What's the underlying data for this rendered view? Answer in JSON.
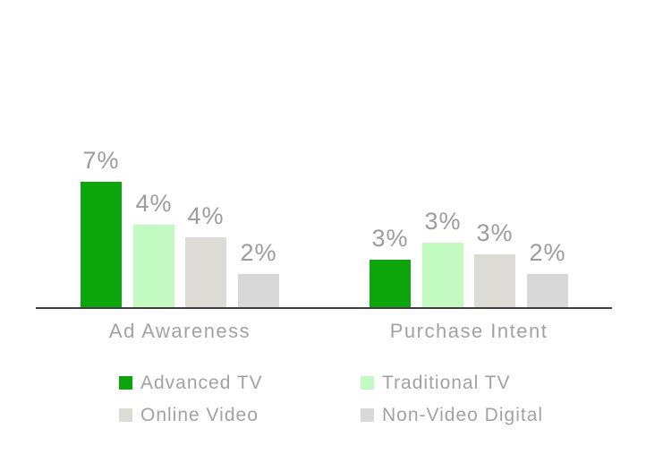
{
  "page": {
    "background_color": "#ffffff",
    "text_gray": "#a2a2a2",
    "value_label_gray": "#9c9c9c",
    "axis_color": "#3e3e3e"
  },
  "chart_data": {
    "type": "bar",
    "title": "",
    "categories": [
      "Ad Awareness",
      "Purchase Intent"
    ],
    "series": [
      {
        "name": "Advanced TV",
        "color": "#0ca60c",
        "values": [
          7,
          3
        ],
        "data_labels": [
          "7%",
          "3%"
        ],
        "bar_heights_pct_estimated": [
          7.0,
          2.7
        ]
      },
      {
        "name": "Traditional TV",
        "color": "#c2fac2",
        "values": [
          4,
          3
        ],
        "data_labels": [
          "4%",
          "3%"
        ],
        "bar_heights_pct_estimated": [
          4.6,
          3.6
        ]
      },
      {
        "name": "Online Video",
        "color": "#dcdbd5",
        "values": [
          4,
          3
        ],
        "data_labels": [
          "4%",
          "3%"
        ],
        "bar_heights_pct_estimated": [
          3.9,
          3.0
        ]
      },
      {
        "name": "Non-Video Digital",
        "color": "#d8d8d8",
        "values": [
          2,
          2
        ],
        "data_labels": [
          "2%",
          "2%"
        ],
        "bar_heights_pct_estimated": [
          1.9,
          1.9
        ]
      }
    ],
    "unit": "%",
    "ylim": [
      0,
      7
    ],
    "grid": false,
    "y_axis_visible": false,
    "legend_position": "bottom",
    "legend_layout": "2 columns x 2 rows",
    "legend_entries": [
      "Advanced TV",
      "Traditional TV",
      "Online Video",
      "Non-Video Digital"
    ]
  }
}
